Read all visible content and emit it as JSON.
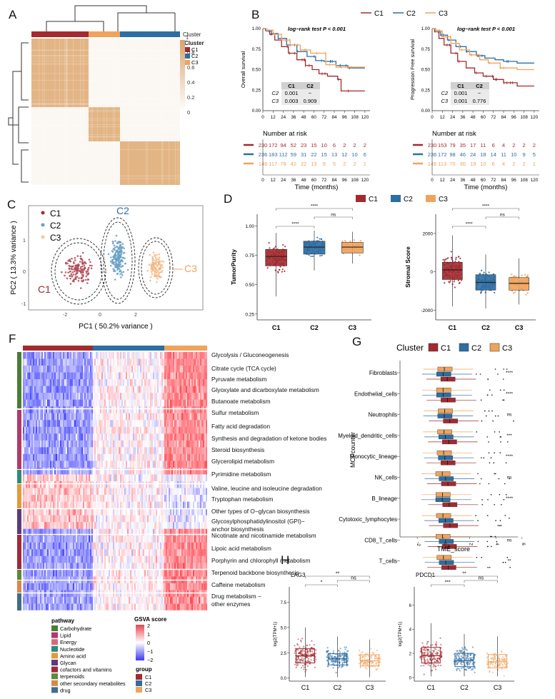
{
  "panels": {
    "A": {
      "label": "A",
      "legend_title": "Cluster",
      "legend_items": [
        "C1",
        "C2",
        "C3"
      ],
      "colorbar_title": "1",
      "colorbar_ticks": [
        "0.8",
        "0.6",
        "0.4",
        "0.2",
        "0"
      ],
      "top_annotation_label": "Cluster"
    },
    "B": {
      "label": "B",
      "legend": [
        "C1",
        "C2",
        "C3"
      ],
      "os": {
        "ylabel": "Overall survival",
        "test": "log−rank test P < 0.001",
        "table_header": [
          "C1",
          "C2"
        ],
        "table_rows": [
          [
            "C2",
            "0.001",
            "−"
          ],
          [
            "C3",
            "0.003",
            "0.909"
          ]
        ],
        "risk_title": "Number at risk",
        "risk": [
          [
            "230",
            "172",
            "94",
            "52",
            "23",
            "15",
            "10",
            "6",
            "2",
            "2",
            "2"
          ],
          [
            "236",
            "183",
            "112",
            "59",
            "31",
            "22",
            "15",
            "13",
            "12",
            "10",
            "6"
          ],
          [
            "146",
            "117",
            "78",
            "42",
            "22",
            "13",
            "9",
            "5",
            "2",
            "2",
            "1"
          ]
        ]
      },
      "pfs": {
        "ylabel": "Progression Free survival",
        "test": "log−rank test P < 0.001",
        "table_header": [
          "C1",
          "C2"
        ],
        "table_rows": [
          [
            "C2",
            "0.001",
            "−"
          ],
          [
            "C3",
            "0.001",
            "0.776"
          ]
        ],
        "risk_title": "Number at risk",
        "risk": [
          [
            "230",
            "153",
            "79",
            "35",
            "17",
            "11",
            "6",
            "4",
            "2",
            "2",
            "2"
          ],
          [
            "236",
            "172",
            "98",
            "46",
            "24",
            "18",
            "14",
            "11",
            "10",
            "9",
            "5"
          ],
          [
            "146",
            "113",
            "70",
            "36",
            "19",
            "10",
            "6",
            "4",
            "2",
            "2",
            "1"
          ]
        ]
      },
      "xticks": [
        "0",
        "12",
        "24",
        "36",
        "48",
        "60",
        "72",
        "84",
        "96",
        "108",
        "120"
      ],
      "yticks": [
        "0.00",
        "0.25",
        "0.50",
        "0.75",
        "1.00"
      ],
      "xlabel": "Time (months)"
    },
    "C": {
      "label": "C",
      "legend": [
        "C1",
        "C2",
        "C3"
      ],
      "xlabel": "PC1 ( 50.2% variance )",
      "ylabel": "PC2 ( 13.3% variance )",
      "xticks": [
        "-2",
        "0",
        "2"
      ],
      "yticks": [
        "1",
        "0",
        "-1"
      ],
      "cluster_labels": [
        "C1",
        "C2",
        "C3"
      ]
    },
    "D": {
      "label": "D",
      "legend": [
        "C1",
        "C2",
        "C3"
      ],
      "tp": {
        "ylabel": "TumorPurity",
        "yticks": [
          "1.00",
          "0.75",
          "0.50",
          "0.25"
        ],
        "sig": [
          "****",
          "****",
          "ns"
        ]
      },
      "ss": {
        "ylabel": "Stromal Score",
        "yticks": [
          "2000",
          "0",
          "-2000"
        ],
        "sig": [
          "****",
          "****",
          "ns"
        ]
      },
      "xcats": [
        "C1",
        "C2",
        "C3"
      ]
    },
    "F": {
      "label": "F",
      "pathways": [
        "Glycolysis / Gluconeogenesis",
        "Citrate cycle (TCA cycle)",
        "Pyruvate metabolism",
        "Glyoxylate and dicarboxylate metabolism",
        "Butanoate metabolism",
        "Sulfur metabolism",
        "Fatty acid degradation",
        "Synthesis and degradation of ketone bodies",
        "Steroid biosynthesis",
        "Glycerolipid metabolism",
        "Pyrimidine metabolism",
        "Valine, leucine and isoleucine degradation",
        "Tryptophan metabolism",
        "Other types of O−glycan biosynthesis",
        "Glycosylphosphatidylinositol (GPI)−",
        "anchor biosynthesis",
        "Nicotinate and nicotinamide metabolism",
        "Lipoic acid metabolism",
        "Porphyrin and chlorophyll metabolism",
        "Terpenoid backbone biosynthesis",
        "Caffeine metabolism",
        "Drug metabolism −",
        "other enzymes"
      ],
      "legend_pathway_title": "pathway",
      "legend_pathway": [
        "Carbohydrate",
        "Lipid",
        "Energy",
        "Nucleotide",
        "Amino acid",
        "Glycan",
        "cofactors and vitamins",
        "terpenoids",
        "other secondary metabolites",
        "drug"
      ],
      "gsva_title": "GSVA score",
      "gsva_ticks": [
        "2",
        "1",
        "0",
        "−1",
        "−2"
      ],
      "group_title": "group",
      "group_items": [
        "C1",
        "C2",
        "C3"
      ]
    },
    "G": {
      "label": "G",
      "legend_title": "Cluster",
      "legend": [
        "C1",
        "C2",
        "C3"
      ],
      "cells": [
        "Fibroblasts",
        "Endothelial_cells",
        "Neutrophils",
        "Myeloid_dendritic_cells",
        "Monocytic_lineage",
        "NK_cells",
        "B_lineage",
        "Cytotoxic_lymphocytes",
        "CD8_T_cells",
        "T_cells"
      ],
      "sig": [
        "****",
        "****",
        "ns",
        "***",
        "****",
        "ns",
        "****",
        "*",
        "ns",
        "**"
      ],
      "ylabel": "MCPcounter",
      "xlabel": "TME_score",
      "xticks": [
        "-2",
        "0",
        "2",
        "4",
        "6"
      ]
    },
    "H": {
      "label": "H",
      "lag3": {
        "title": "LAG3",
        "ylabel": "log2(TPM+1)",
        "yticks": [
          "7.5",
          "5.0",
          "2.5",
          "0.0"
        ],
        "sig": [
          "**",
          "*",
          "ns"
        ]
      },
      "pdcd1": {
        "title": "PDCD1",
        "ylabel": "log2(TPM+1)",
        "yticks": [
          "6",
          "4",
          "2",
          "0"
        ],
        "sig": [
          "**",
          "***",
          "ns"
        ]
      },
      "xcats": [
        "C1",
        "C2",
        "C3"
      ]
    }
  },
  "colors": {
    "C1": "#a32a2f",
    "C2": "#2d6ea3",
    "C3": "#f0a35c",
    "heat": "#d9a36b",
    "pathway": [
      "#4a7d36",
      "#b23a6a",
      "#d46b7a",
      "#2e8a7a",
      "#e39a3b",
      "#5a3c7e",
      "#9e2a3a",
      "#5b8a3a",
      "#d8884a",
      "#3f6d8a"
    ]
  }
}
